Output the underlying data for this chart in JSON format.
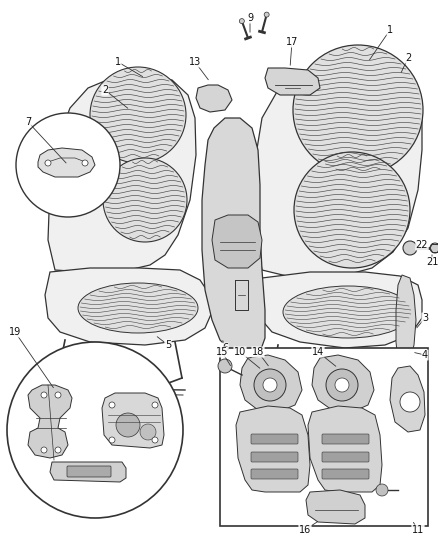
{
  "bg_color": "#ffffff",
  "lc": "#333333",
  "fig_w": 4.39,
  "fig_h": 5.33,
  "dpi": 100,
  "seat_fill": "#f0f0f0",
  "fabric_dense": "#c8c8c8",
  "gray_light": "#e8e8e8",
  "gray_mid": "#d0d0d0",
  "gray_dark": "#aaaaaa",
  "white": "#ffffff"
}
